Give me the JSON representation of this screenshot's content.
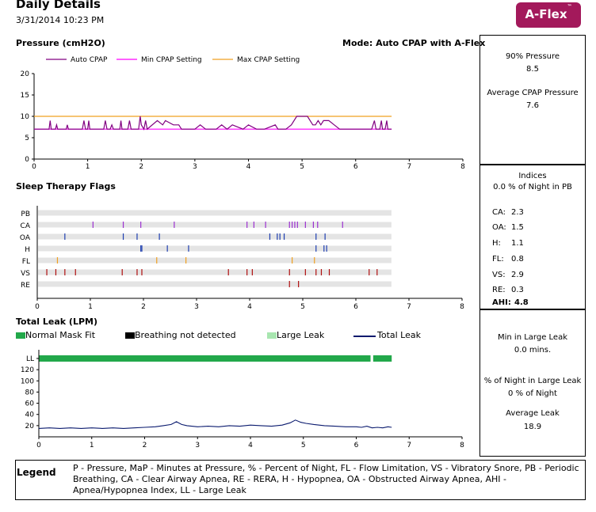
{
  "header": {
    "title": "Daily Details",
    "datetime": "3/31/2014 10:23 PM",
    "brand": "A-Flex",
    "brand_tm": "™"
  },
  "pressure_section": {
    "title": "Pressure (cmH2O)",
    "mode": "Mode: Auto CPAP with A-Flex"
  },
  "flags_section": {
    "title": "Sleep Therapy Flags"
  },
  "leak_section": {
    "title": "Total Leak (LPM)",
    "legend": [
      "Normal Mask Fit",
      "Breathing not detected",
      "Large Leak",
      "Total Leak"
    ]
  },
  "right_panel": {
    "p90_label": "90% Pressure",
    "p90_value": "8.5",
    "avg_label": "Average CPAP Pressure",
    "avg_value": "7.6",
    "indices_title": "Indices",
    "indices_pb": "0.0 % of Night in PB",
    "indices": [
      {
        "label": "CA:",
        "value": "2.3"
      },
      {
        "label": "OA:",
        "value": "1.5"
      },
      {
        "label": "H:",
        "value": "1.1"
      },
      {
        "label": "FL:",
        "value": "0.8"
      },
      {
        "label": "VS:",
        "value": "2.9"
      },
      {
        "label": "RE:",
        "value": "0.3"
      },
      {
        "label": "AHI:",
        "value": "4.8"
      }
    ],
    "min_large_leak_label": "Min in Large Leak",
    "min_large_leak_value": "0.0  mins.",
    "pct_large_leak_label": "% of Night in Large Leak",
    "pct_large_leak_value": "0 % of Night",
    "avg_leak_label": "Average Leak",
    "avg_leak_value": "18.9"
  },
  "legend": {
    "title": "Legend",
    "text": "P - Pressure, MaP - Minutes at Pressure, % - Percent of Night, FL - Flow Limitation, VS - Vibratory Snore, PB - Periodic Breathing, CA - Clear Airway Apnea, RE - RERA, H - Hypopnea, OA - Obstructed Airway Apnea, AHI - Apnea/Hypopnea Index, LL - Large Leak"
  },
  "colors": {
    "brand": "#a3195b",
    "auto_cpap": "#800080",
    "min_setting": "#ff00ff",
    "max_setting": "#f0a020",
    "normal_fit": "#22a84a",
    "large_leak": "#a8e6b0",
    "total_leak": "#0a1a6e",
    "flag_track": "#e4e4e4"
  },
  "chart_data": [
    {
      "type": "line",
      "title": "Pressure (cmH2O)",
      "x_ticks": [
        "0",
        "1",
        "2",
        "3",
        "4",
        "5",
        "6",
        "7",
        "8"
      ],
      "y_ticks": [
        "0",
        "5",
        "10",
        "15",
        "20"
      ],
      "xlim": [
        0,
        8
      ],
      "ylim": [
        0,
        20
      ],
      "series": [
        {
          "name": "Auto CPAP",
          "x": [
            0,
            0.28,
            0.3,
            0.32,
            0.4,
            0.42,
            0.44,
            0.6,
            0.62,
            0.64,
            0.9,
            0.93,
            0.96,
            1.0,
            1.02,
            1.04,
            1.3,
            1.33,
            1.36,
            1.42,
            1.45,
            1.48,
            1.6,
            1.62,
            1.64,
            1.75,
            1.78,
            1.81,
            1.95,
            1.98,
            2.0,
            2.05,
            2.08,
            2.11,
            2.3,
            2.4,
            2.45,
            2.6,
            2.7,
            2.75,
            3.0,
            3.1,
            3.2,
            3.4,
            3.5,
            3.6,
            3.7,
            3.9,
            4.0,
            4.15,
            4.3,
            4.5,
            4.55,
            4.7,
            4.8,
            4.9,
            5.0,
            5.1,
            5.2,
            5.25,
            5.3,
            5.35,
            5.4,
            5.5,
            5.6,
            5.7,
            5.8,
            6.0,
            6.3,
            6.35,
            6.38,
            6.45,
            6.48,
            6.5,
            6.55,
            6.58,
            6.6,
            6.65,
            6.67
          ],
          "y": [
            7,
            7,
            9,
            7,
            7,
            8,
            7,
            7,
            8,
            7,
            7,
            9,
            7,
            7,
            9,
            7,
            7,
            9,
            7,
            7,
            8,
            7,
            7,
            9,
            7,
            7,
            9,
            7,
            7,
            10,
            8,
            7,
            9,
            7,
            9,
            8,
            9,
            8,
            8,
            7,
            7,
            8,
            7,
            7,
            8,
            7,
            8,
            7,
            8,
            7,
            7,
            8,
            7,
            7,
            8,
            10,
            10,
            10,
            8,
            8,
            9,
            8,
            9,
            9,
            8,
            7,
            7,
            7,
            7,
            9,
            7,
            7,
            9,
            7,
            7,
            9,
            7,
            7,
            7
          ]
        },
        {
          "name": "Min CPAP Setting",
          "x": [
            0,
            6.67
          ],
          "y": [
            7,
            7
          ]
        },
        {
          "name": "Max CPAP Setting",
          "x": [
            0,
            6.67
          ],
          "y": [
            10,
            10
          ]
        }
      ]
    },
    {
      "type": "scatter",
      "title": "Sleep Therapy Flags",
      "x_ticks": [
        "0",
        "1",
        "2",
        "3",
        "4",
        "5",
        "6",
        "7",
        "8"
      ],
      "xlim": [
        0,
        8
      ],
      "rows": [
        "PB",
        "CA",
        "OA",
        "H",
        "FL",
        "VS",
        "RE"
      ],
      "events": {
        "PB": [],
        "CA": [
          1.05,
          1.62,
          1.95,
          2.58,
          3.95,
          4.08,
          4.3,
          4.75,
          4.8,
          4.85,
          4.9,
          5.05,
          5.2,
          5.28,
          5.75
        ],
        "OA": [
          0.52,
          1.62,
          1.88,
          2.3,
          4.38,
          4.52,
          4.57,
          4.65,
          5.25,
          5.42
        ],
        "H": [
          1.95,
          1.97,
          2.45,
          2.85,
          5.25,
          5.4,
          5.45
        ],
        "FL": [
          0.38,
          2.25,
          2.8,
          4.8,
          5.22
        ],
        "VS": [
          0.18,
          0.35,
          0.52,
          0.72,
          1.6,
          1.88,
          1.97,
          3.6,
          3.95,
          4.05,
          4.75,
          5.05,
          5.25,
          5.35,
          5.5,
          6.25,
          6.4
        ],
        "RE": [
          4.75,
          4.92
        ]
      }
    },
    {
      "type": "line",
      "title": "Total Leak (LPM)",
      "x_ticks": [
        "0",
        "1",
        "2",
        "3",
        "4",
        "5",
        "6",
        "7",
        "8"
      ],
      "y_ticks": [
        "20",
        "40",
        "60",
        "80",
        "100",
        "120",
        "LL"
      ],
      "xlim": [
        0,
        8
      ],
      "ylim": [
        0,
        140
      ],
      "large_leak_band": [
        [
          0,
          6.27
        ],
        [
          6.32,
          6.67
        ]
      ],
      "series": [
        {
          "name": "Total Leak",
          "x": [
            0,
            0.2,
            0.4,
            0.6,
            0.8,
            1.0,
            1.2,
            1.4,
            1.6,
            1.8,
            2.0,
            2.2,
            2.35,
            2.5,
            2.6,
            2.7,
            2.8,
            3.0,
            3.2,
            3.4,
            3.6,
            3.8,
            4.0,
            4.2,
            4.4,
            4.6,
            4.75,
            4.85,
            4.95,
            5.05,
            5.2,
            5.4,
            5.6,
            5.8,
            6.0,
            6.1,
            6.2,
            6.3,
            6.4,
            6.5,
            6.6,
            6.67
          ],
          "y": [
            15,
            16,
            15,
            16,
            15,
            16,
            15,
            16,
            15,
            16,
            17,
            18,
            20,
            22,
            27,
            22,
            20,
            18,
            19,
            18,
            20,
            19,
            21,
            20,
            19,
            21,
            25,
            30,
            26,
            24,
            22,
            20,
            19,
            18,
            18,
            17,
            19,
            16,
            17,
            16,
            18,
            17
          ]
        }
      ]
    }
  ]
}
